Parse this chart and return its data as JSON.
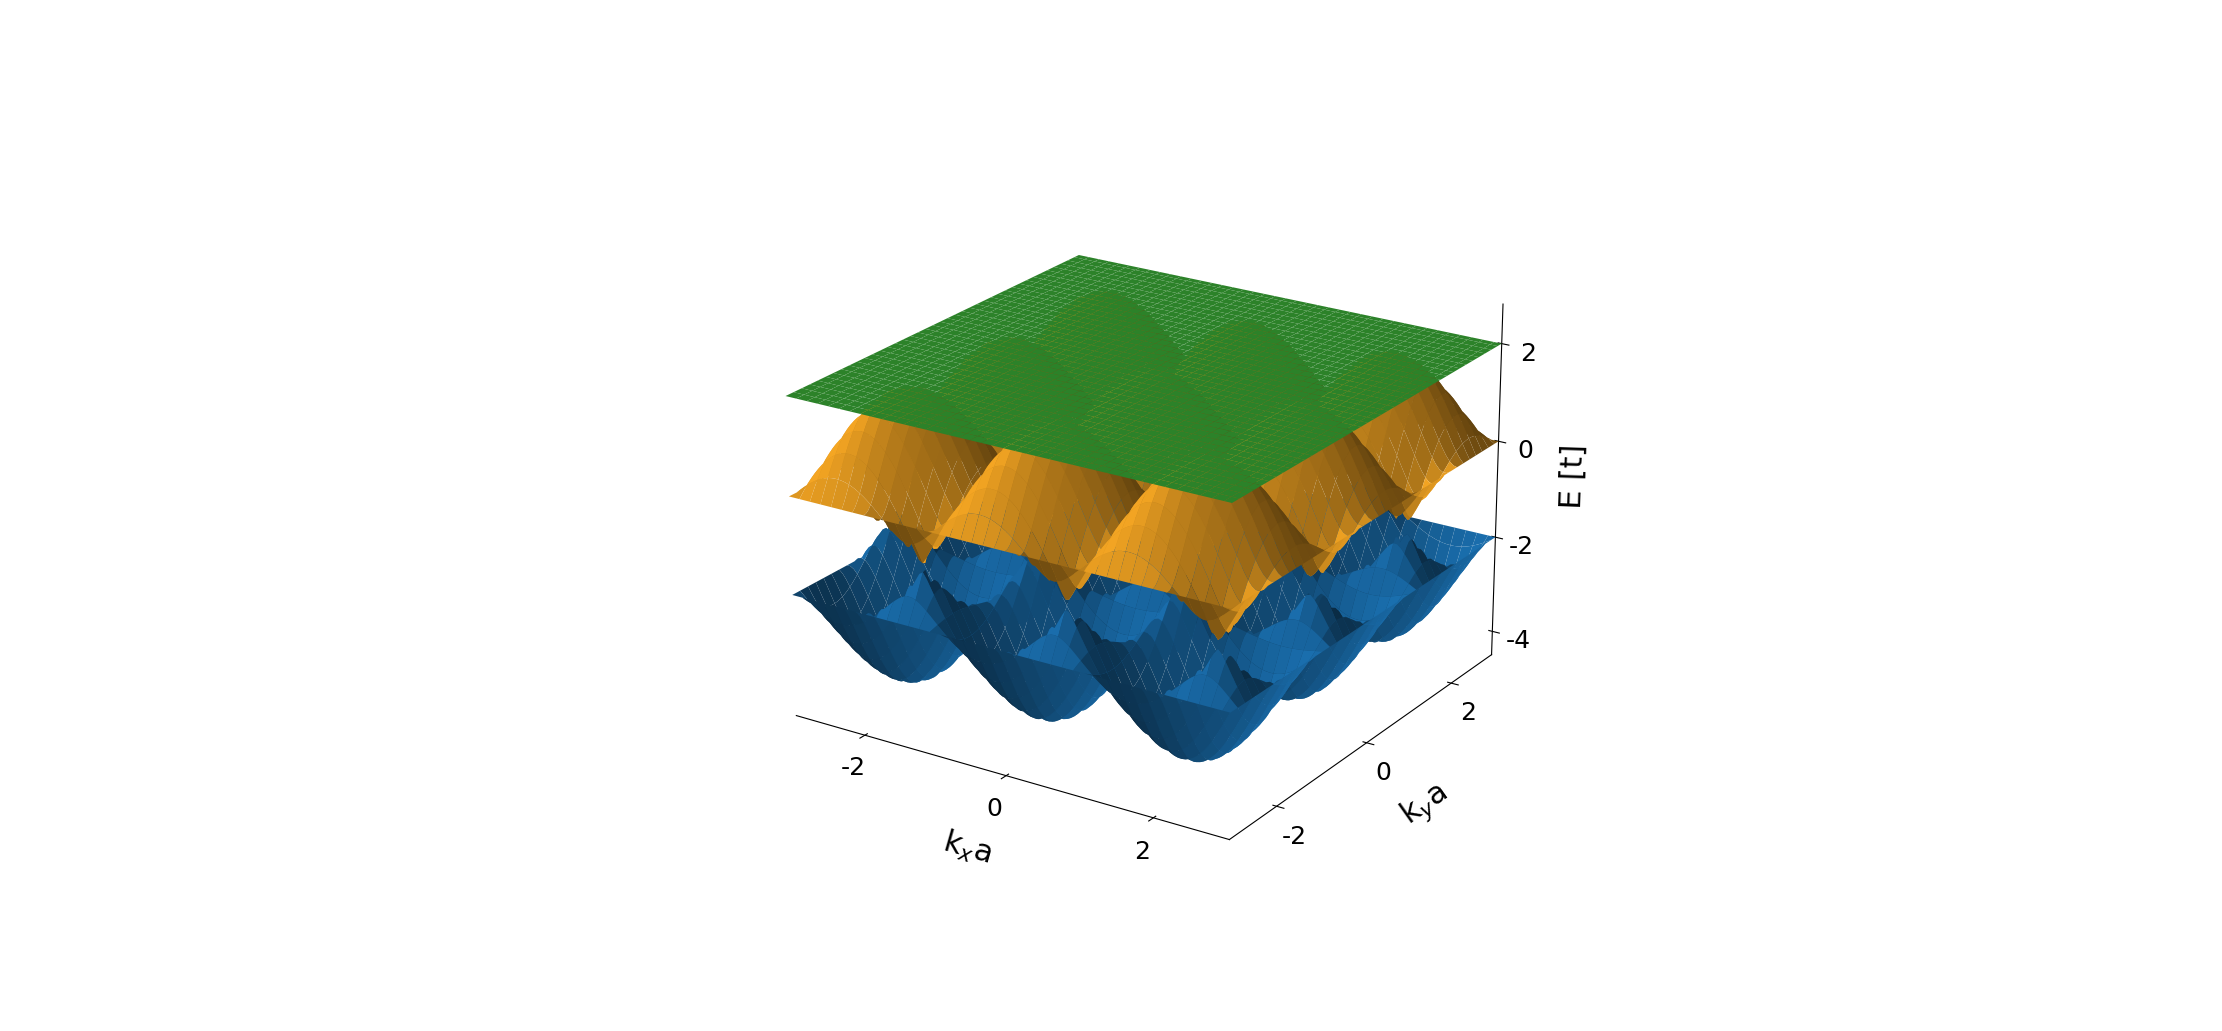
{
  "xlabel": "k$_x$a",
  "ylabel": "k$_y$a",
  "zlabel": "E [t]",
  "zlim": [
    -4.5,
    2.8
  ],
  "zticks": [
    -4,
    -2,
    0,
    2
  ],
  "krange": 3.14159265,
  "color_flat": "#3aaa35",
  "color_middle": "#f5a623",
  "color_lower": "#1a6faf",
  "figsize": [
    22.22,
    10.31
  ],
  "dpi": 100,
  "elev": 22,
  "azim": -57
}
